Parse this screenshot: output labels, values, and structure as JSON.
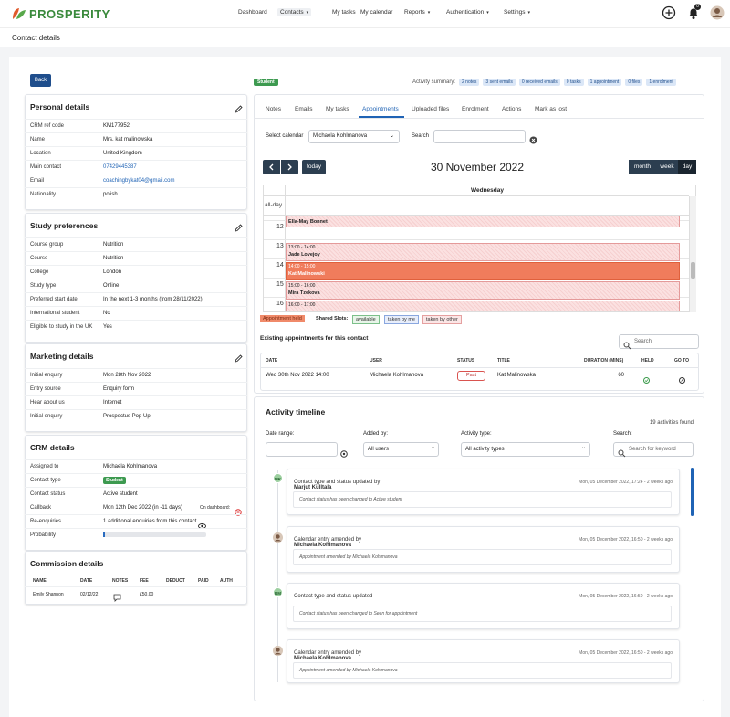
{
  "header": {
    "logo": "PROSPERITY",
    "nav": [
      "Dashboard",
      "Contacts",
      "My tasks",
      "My calendar",
      "Reports",
      "Authentication",
      "Settings"
    ],
    "notification_count": "0"
  },
  "page_title": "Contact details",
  "back_button": "Back",
  "panels": [
    {
      "title": "Personal details",
      "rows": [
        [
          "CRM ref code",
          "KM177952"
        ],
        [
          "Name",
          "Mrs. kat malinowska"
        ],
        [
          "Location",
          "United Kingdom"
        ],
        [
          "Main contact",
          "07429445387"
        ],
        [
          "Email",
          "coachingbykat04@gmail.com"
        ],
        [
          "Nationality",
          "polish"
        ]
      ]
    },
    {
      "title": "Study preferences",
      "rows": [
        [
          "Course group",
          "Nutrition"
        ],
        [
          "Course",
          "Nutrition"
        ],
        [
          "College",
          "London"
        ],
        [
          "Study type",
          "Online"
        ],
        [
          "Preferred start date",
          "In the next 1-3 months (from 28/11/2022)"
        ],
        [
          "International student",
          "No"
        ],
        [
          "Eligible to study in the UK",
          "Yes"
        ]
      ]
    },
    {
      "title": "Marketing details",
      "rows": [
        [
          "Initial enquiry",
          "Mon 28th Nov 2022"
        ],
        [
          "Entry source",
          "Enquiry form"
        ],
        [
          "Hear about us",
          "Internet"
        ],
        [
          "Initial enquiry",
          "Prospectus Pop Up"
        ]
      ]
    },
    {
      "title": "CRM details",
      "rows": [
        [
          "Assigned to",
          "Michaela Kohlmanova"
        ],
        [
          "Contact type",
          "Student"
        ],
        [
          "Contact status",
          "Active student"
        ],
        [
          "Callback",
          "Mon 12th Dec 2022 (in -11 days)"
        ],
        [
          "Re-enquiries",
          "1 additional enquiries from this contact"
        ],
        [
          "Probability"
        ]
      ]
    }
  ],
  "callback_note": "On dashboard:",
  "commission": {
    "title": "Commission details",
    "columns": [
      "NAME",
      "DATE",
      "NOTES",
      "FEE",
      "DEDUCT",
      "PAID",
      "AUTH"
    ],
    "row": {
      "name": "Emily Shannon",
      "date": "02/12/22",
      "fee": "£50.00"
    }
  },
  "contact_badge": "Student",
  "activity_summary": {
    "label": "Activity summary:",
    "chips": [
      "2 notes",
      "3 sent emails",
      "0 received emails",
      "0 tasks",
      "1 appointment",
      "0 files",
      "1 enrolment"
    ]
  },
  "tabs": {
    "items": [
      "Notes",
      "Emails",
      "My tasks",
      "Appointments",
      "Uploaded files",
      "Enrolment",
      "Actions",
      "Mark as lost"
    ],
    "active": 3
  },
  "calendar": {
    "select_label": "Select calendar",
    "selected": "Michaela Kohlmanova",
    "search_label": "Search",
    "today": "today",
    "title": "30 November 2022",
    "views": [
      "month",
      "week",
      "day"
    ],
    "active_view": 2,
    "day_header": "Wednesday",
    "all_day": "all-day",
    "hours": [
      "12",
      "13",
      "14",
      "15",
      "16"
    ],
    "events": [
      {
        "name": "Ella-May Bonnet"
      },
      {
        "time": "13:00 - 14:00",
        "name": "Jade Lovejoy"
      },
      {
        "time": "14:00 - 15:00",
        "name": "Kat Malinowski"
      },
      {
        "time": "15:00 - 16:00",
        "name": "Mira Tzekova"
      },
      {
        "time": "16:00 - 17:00"
      }
    ],
    "legend": {
      "held": "Appointment held",
      "shared": "Shared Slots:",
      "slots": [
        "available",
        "taken by me",
        "taken by other"
      ]
    }
  },
  "appointments": {
    "title": "Existing appointments for this contact",
    "search_placeholder": "Search",
    "columns": [
      "DATE",
      "USER",
      "STATUS",
      "TITLE",
      "DURATION (MINS)",
      "HELD",
      "GO TO"
    ],
    "rows": [
      [
        "Wed 30th Nov 2022 14:00",
        "Michaela Kohlmanova",
        "Past",
        "Kat Malinowska",
        "60"
      ]
    ]
  },
  "timeline": {
    "title": "Activity timeline",
    "count": "19 activities found",
    "filters": {
      "date_label": "Date range:",
      "added_label": "Added by:",
      "added_value": "All users",
      "type_label": "Activity type:",
      "type_value": "All activity types",
      "search_label": "Search:",
      "search_placeholder": "Search for keyword"
    },
    "entries": [
      {
        "initials": "MK",
        "action": "Contact type and status updated by",
        "by": "Marjut Kulltala",
        "date": "Mon, 05 December 2022, 17:24 - 2 weeks ago",
        "message": "Contact status has been changed to Active student"
      },
      {
        "action": "Calendar entry amended by",
        "by": "Michaela Kohlmanova",
        "date": "Mon, 05 December 2022, 16:50 - 2 weeks ago",
        "message": "Appointment amended by Michaela Kohlmanova"
      },
      {
        "initials": "RM",
        "action": "Contact type and status updated",
        "date": "Mon, 05 December 2022, 16:50 - 2 weeks ago",
        "message": "Contact status has been changed to Seen for appointment"
      },
      {
        "action": "Calendar entry amended by",
        "by": "Michaela Kohlmanova",
        "date": "Mon, 05 December 2022, 16:50 - 2 weeks ago",
        "message": "Appointment amended by Michaela Kohlmanova"
      }
    ]
  }
}
